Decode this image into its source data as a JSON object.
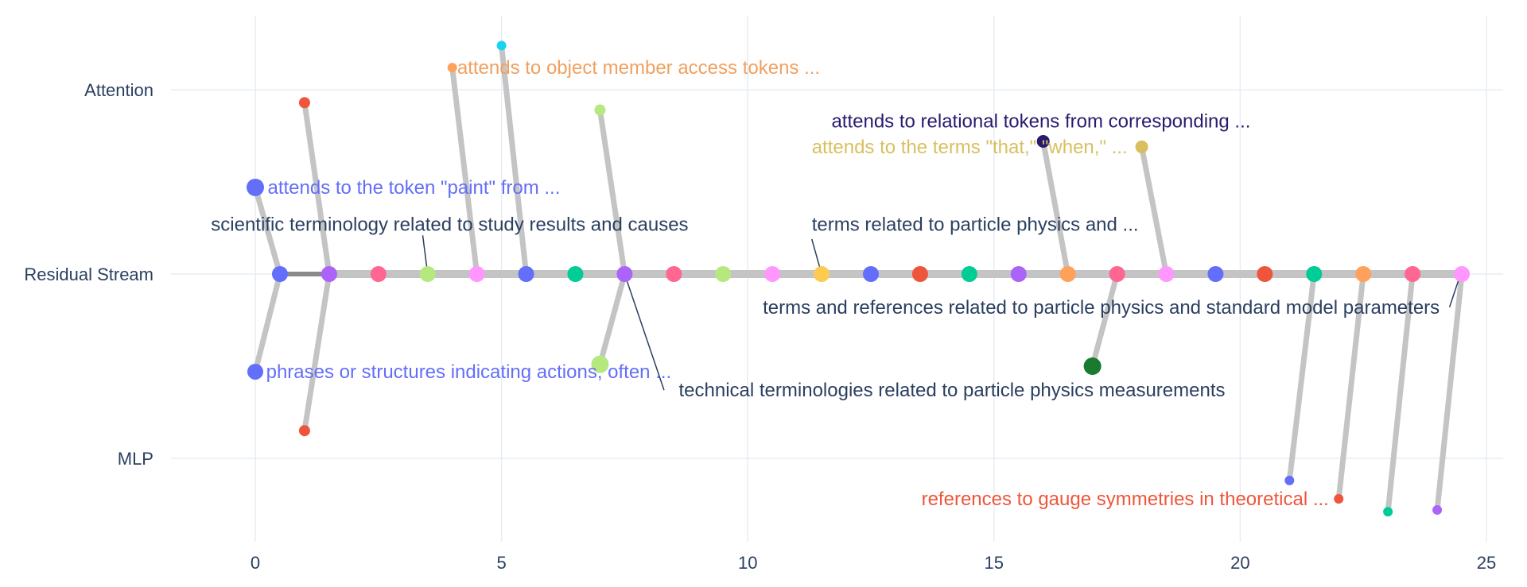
{
  "chart_data": {
    "type": "scatter",
    "title": "",
    "xlabel": "",
    "ylabel": "",
    "xlim": [
      0,
      25
    ],
    "x_ticks": [
      0,
      5,
      10,
      15,
      20,
      25
    ],
    "x_tick_labels": [
      "0",
      "5",
      "10",
      "15",
      "20",
      "25"
    ],
    "y_categories": [
      "Attention",
      "Residual Stream",
      "MLP"
    ],
    "y_category_values": [
      1,
      0,
      -1
    ],
    "grid": true,
    "residual_nodes": [
      {
        "x": 0.5,
        "color": "#636efa"
      },
      {
        "x": 1.5,
        "color": "#ab63fa"
      },
      {
        "x": 2.5,
        "color": "#ff6692"
      },
      {
        "x": 3.5,
        "color": "#b6e880"
      },
      {
        "x": 4.5,
        "color": "#ff97ff"
      },
      {
        "x": 5.5,
        "color": "#636efa"
      },
      {
        "x": 6.5,
        "color": "#00cc96"
      },
      {
        "x": 7.5,
        "color": "#ab63fa"
      },
      {
        "x": 8.5,
        "color": "#ff6692"
      },
      {
        "x": 9.5,
        "color": "#b6e880"
      },
      {
        "x": 10.5,
        "color": "#ff97ff"
      },
      {
        "x": 11.5,
        "color": "#fecb52"
      },
      {
        "x": 12.5,
        "color": "#636efa"
      },
      {
        "x": 13.5,
        "color": "#ef553b"
      },
      {
        "x": 14.5,
        "color": "#00cc96"
      },
      {
        "x": 15.5,
        "color": "#ab63fa"
      },
      {
        "x": 16.5,
        "color": "#ffa15a"
      },
      {
        "x": 17.5,
        "color": "#ff6692"
      },
      {
        "x": 18.5,
        "color": "#ff97ff"
      },
      {
        "x": 19.5,
        "color": "#636efa"
      },
      {
        "x": 20.5,
        "color": "#ef553b"
      },
      {
        "x": 21.5,
        "color": "#00cc96"
      },
      {
        "x": 22.5,
        "color": "#ffa15a"
      },
      {
        "x": 23.5,
        "color": "#ff6692"
      },
      {
        "x": 24.5,
        "color": "#ff97ff"
      }
    ],
    "residual_edges": [
      {
        "from": 0.5,
        "to": 1.5,
        "width": 6,
        "color": "#8a8a8a"
      },
      {
        "from": 1.5,
        "to": 7.5,
        "width": 10,
        "color": "#c4c4c4"
      },
      {
        "from": 7.5,
        "to": 24.5,
        "width": 10,
        "color": "#c4c4c4"
      }
    ],
    "feature_nodes": [
      {
        "x": 0,
        "y": 0.47,
        "size": 11,
        "color": "#636efa",
        "attach": 0.5
      },
      {
        "x": 0,
        "y": -0.53,
        "size": 10,
        "color": "#636efa",
        "attach": 0.5
      },
      {
        "x": 1,
        "y": 0.93,
        "size": 7,
        "color": "#ef553b",
        "attach": 1.5
      },
      {
        "x": 1,
        "y": -0.85,
        "size": 7,
        "color": "#ef553b",
        "attach": 1.5
      },
      {
        "x": 4,
        "y": 1.12,
        "size": 6,
        "color": "#ffa15a",
        "attach": 4.5
      },
      {
        "x": 5,
        "y": 1.24,
        "size": 6,
        "color": "#19d3f3",
        "attach": 5.5
      },
      {
        "x": 7,
        "y": 0.89,
        "size": 7,
        "color": "#b6e880",
        "attach": 7.5
      },
      {
        "x": 7,
        "y": -0.49,
        "size": 11,
        "color": "#b6e880",
        "attach": 7.5
      },
      {
        "x": 16,
        "y": 0.72,
        "size": 8,
        "color": "#2a1a6e",
        "attach": 16.5
      },
      {
        "x": 18,
        "y": 0.69,
        "size": 8,
        "color": "#d8c060",
        "attach": 18.5
      },
      {
        "x": 17,
        "y": -0.5,
        "size": 11,
        "color": "#1a7a30",
        "attach": 17.5
      },
      {
        "x": 21,
        "y": -1.12,
        "size": 6,
        "color": "#636efa",
        "attach": 21.5
      },
      {
        "x": 22,
        "y": -1.22,
        "size": 6,
        "color": "#ef553b",
        "attach": 22.5
      },
      {
        "x": 23,
        "y": -1.29,
        "size": 6,
        "color": "#00cc96",
        "attach": 23.5
      },
      {
        "x": 24,
        "y": -1.28,
        "size": 6,
        "color": "#ab63fa",
        "attach": 24.5
      }
    ],
    "annotations": [
      {
        "text": "attends to object member access tokens ...",
        "x": 4.1,
        "y": 1.12,
        "anchor": "start",
        "color": "#f0a060"
      },
      {
        "text": "attends to relational tokens from corresponding ...",
        "x": 11.7,
        "y": 0.83,
        "anchor": "start",
        "color": "#2a1a6e"
      },
      {
        "text": "attends to the terms \"that,\" \"when,\" ...",
        "x": 11.3,
        "y": 0.69,
        "anchor": "start",
        "color": "#d8c060"
      },
      {
        "text": "attends to the token \"paint\" from ...",
        "x": 0.25,
        "y": 0.47,
        "anchor": "start",
        "color": "#636efa"
      },
      {
        "text": "scientific terminology related to study results and causes",
        "x": -0.9,
        "y": 0.27,
        "anchor": "start",
        "color": "#2a3f5f"
      },
      {
        "text": "terms related to particle physics and ...",
        "x": 11.3,
        "y": 0.27,
        "anchor": "start",
        "color": "#2a3f5f"
      },
      {
        "text": "terms and references related to particle physics and standard model parameters",
        "x": 24.05,
        "y": -0.18,
        "anchor": "end",
        "color": "#2a3f5f"
      },
      {
        "text": "phrases or structures indicating actions, often ...",
        "x": 0.22,
        "y": -0.53,
        "anchor": "start",
        "color": "#636efa"
      },
      {
        "text": "technical terminologies related to particle physics measurements",
        "x": 8.6,
        "y": -0.63,
        "anchor": "start",
        "color": "#2a3f5f"
      },
      {
        "text": "references to gauge symmetries in theoretical ...",
        "x": 21.8,
        "y": -1.22,
        "anchor": "end",
        "color": "#ef553b"
      }
    ],
    "leader_lines": [
      {
        "from": [
          3.4,
          0.21
        ],
        "to": [
          3.5,
          0
        ]
      },
      {
        "from": [
          11.3,
          0.19
        ],
        "to": [
          11.5,
          0
        ]
      },
      {
        "from": [
          24.25,
          -0.18
        ],
        "to": [
          24.45,
          -0.02
        ]
      },
      {
        "from": [
          8.3,
          -0.63
        ],
        "to": [
          7.5,
          0
        ]
      }
    ]
  }
}
